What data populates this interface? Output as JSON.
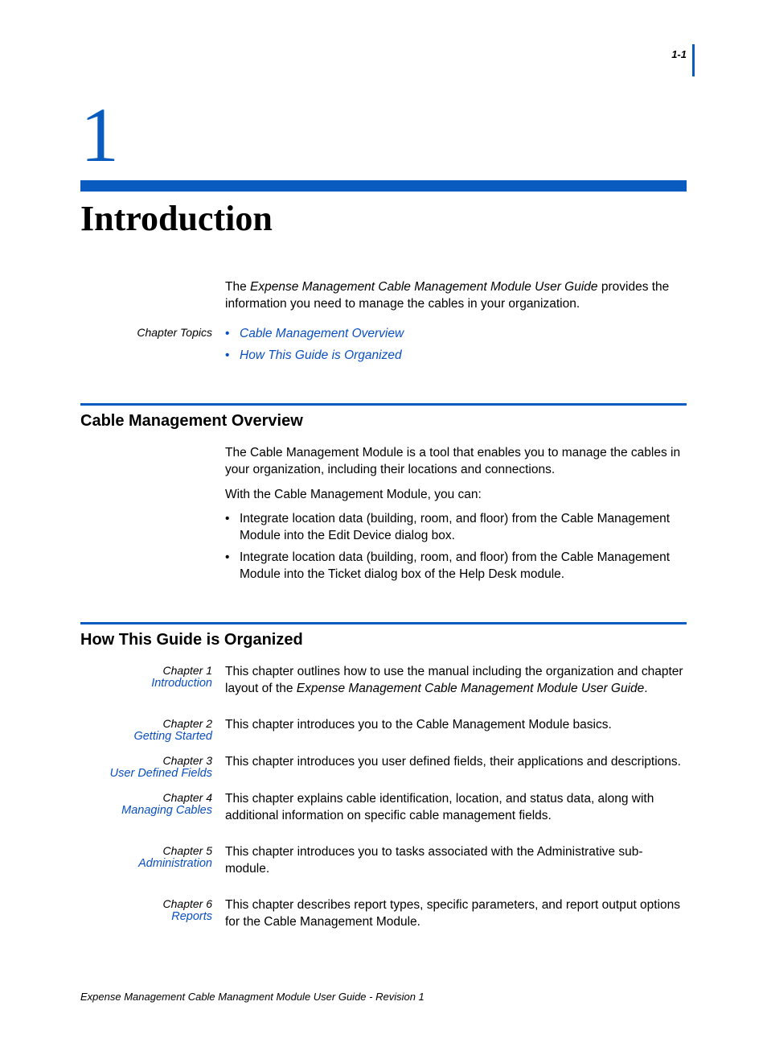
{
  "page_number": "1-1",
  "colors": {
    "accent": "#0a5bbf",
    "link": "#0a4fc0",
    "text": "#000000",
    "background": "#ffffff"
  },
  "chapter": {
    "number": "1",
    "title": "Introduction"
  },
  "intro": {
    "prefix": "The ",
    "guide_name": "Expense Management Cable Management Module User Guide",
    "suffix": " provides the information you need to manage the cables in your organization."
  },
  "topics": {
    "label": "Chapter Topics",
    "items": [
      "Cable Management Overview",
      "How This Guide is Organized"
    ]
  },
  "section_overview": {
    "heading": "Cable Management Overview",
    "p1": "The Cable Management Module is a tool that enables you to manage the cables in your organization, including their locations and connections.",
    "p2": "With the Cable Management Module, you can:",
    "bullets": [
      "Integrate location data (building, room, and floor) from the Cable Management Module into the Edit Device dialog box.",
      "Integrate location data (building, room, and floor) from the Cable Management Module into the Ticket dialog box of the Help Desk module."
    ]
  },
  "section_organized": {
    "heading": "How This Guide is Organized",
    "chapters": [
      {
        "num": "Chapter 1",
        "link": "Introduction",
        "desc_pre": "This chapter outlines how to use the manual including the organization and chapter layout of the ",
        "desc_ital": "Expense Management Cable Management Module User Guide",
        "desc_post": "."
      },
      {
        "num": "Chapter 2",
        "link": "Getting Started",
        "desc_pre": "This chapter introduces you to the Cable Management Module basics.",
        "desc_ital": "",
        "desc_post": ""
      },
      {
        "num": "Chapter 3",
        "link": "User Defined Fields",
        "desc_pre": "This chapter introduces you user defined fields, their applications and descriptions.",
        "desc_ital": "",
        "desc_post": ""
      },
      {
        "num": "Chapter 4",
        "link": "Managing Cables",
        "desc_pre": "This chapter explains cable identification, location, and status data, along with additional information on specific cable management fields.",
        "desc_ital": "",
        "desc_post": ""
      },
      {
        "num": "Chapter 5",
        "link": "Administration",
        "desc_pre": "This chapter introduces you to tasks associated with the Administrative sub-module.",
        "desc_ital": "",
        "desc_post": ""
      },
      {
        "num": "Chapter 6",
        "link": "Reports",
        "desc_pre": "This chapter describes report types, specific parameters, and report output options for the Cable Management Module.",
        "desc_ital": "",
        "desc_post": ""
      }
    ]
  },
  "footer": "Expense Management Cable Managment Module User Guide - Revision 1"
}
